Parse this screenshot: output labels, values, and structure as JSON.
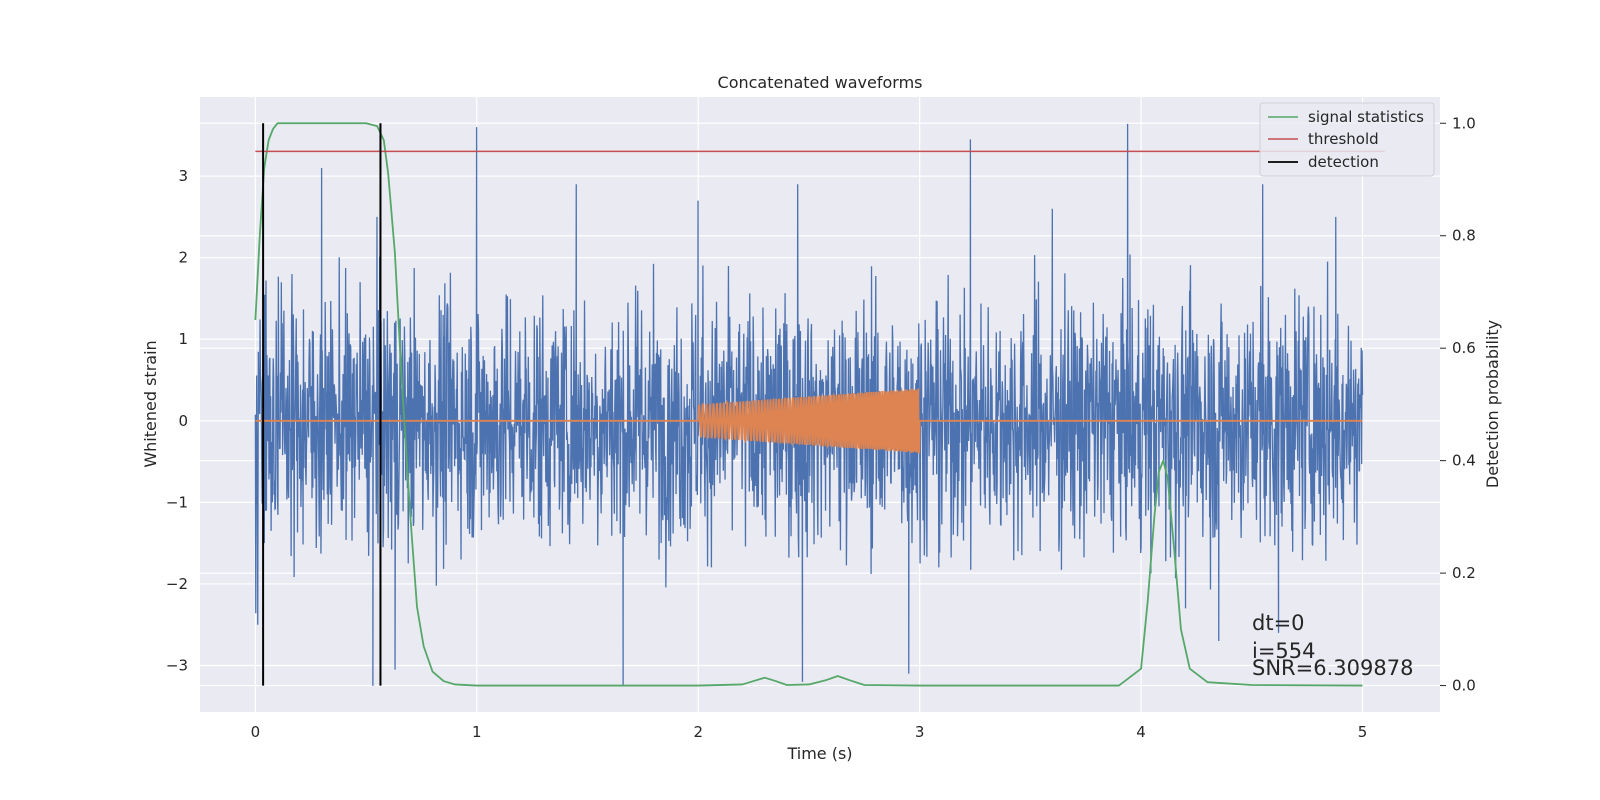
{
  "chart_data": {
    "type": "line",
    "title": "Concatenated waveforms",
    "xlabel": "Time (s)",
    "ylabel": "Whitened strain",
    "ylabel_right": "Detection probability",
    "xlim": [
      -0.25,
      5.35
    ],
    "ylim": [
      -3.57,
      3.97
    ],
    "ylim_right": [
      -0.047,
      1.0467
    ],
    "xticks": [
      0,
      1,
      2,
      3,
      4,
      5
    ],
    "yticks": [
      -3,
      -2,
      -1,
      0,
      1,
      2,
      3
    ],
    "yticks_right": [
      0.0,
      0.2,
      0.4,
      0.6,
      0.8,
      1.0
    ],
    "grid": true,
    "legend_position": "top-right",
    "colors": {
      "strain": "#4c72b0",
      "template": "#dd8452",
      "signal_statistics": "#55a868",
      "threshold": "#c44e52",
      "detection": "#000000",
      "background": "#eaeaf2",
      "grid": "#ffffff"
    },
    "series": [
      {
        "key": "strain",
        "x_range": [
          0,
          5
        ],
        "envelope_noise_amplitude": 3.0,
        "peaks": [
          [
            0.3,
            3.1
          ],
          [
            0.55,
            2.5
          ],
          [
            1.0,
            3.6
          ],
          [
            1.45,
            2.9
          ],
          [
            2.0,
            2.7
          ],
          [
            2.45,
            2.9
          ],
          [
            3.23,
            3.45
          ],
          [
            3.6,
            2.6
          ],
          [
            3.94,
            3.64
          ],
          [
            4.55,
            2.9
          ],
          [
            4.88,
            2.5
          ]
        ],
        "troughs": [
          [
            0.01,
            -2.5
          ],
          [
            0.53,
            -3.25
          ],
          [
            0.63,
            -3.05
          ],
          [
            1.66,
            -3.25
          ],
          [
            2.95,
            -3.1
          ],
          [
            2.47,
            -3.2
          ],
          [
            4.35,
            -2.7
          ],
          [
            4.62,
            -2.6
          ],
          [
            4.2,
            -2.3
          ]
        ]
      },
      {
        "key": "template",
        "x_range": [
          0,
          5
        ],
        "chirp_start": 2.0,
        "chirp_end": 3.0,
        "amplitude_start": 0.2,
        "amplitude_end": 0.4
      },
      {
        "name": "signal statistics",
        "key": "signal_statistics",
        "x": [
          0.0,
          0.02,
          0.04,
          0.06,
          0.08,
          0.1,
          0.15,
          0.2,
          0.3,
          0.4,
          0.5,
          0.55,
          0.58,
          0.6,
          0.63,
          0.66,
          0.7,
          0.73,
          0.76,
          0.8,
          0.85,
          0.9,
          1.0,
          1.5,
          2.0,
          2.2,
          2.25,
          2.3,
          2.35,
          2.4,
          2.5,
          2.58,
          2.63,
          2.68,
          2.75,
          3.0,
          3.5,
          3.9,
          4.0,
          4.03,
          4.06,
          4.08,
          4.1,
          4.12,
          4.15,
          4.18,
          4.22,
          4.3,
          4.5,
          5.0
        ],
        "y": [
          0.65,
          0.8,
          0.92,
          0.97,
          0.99,
          1.0,
          1.0,
          1.0,
          1.0,
          1.0,
          1.0,
          0.995,
          0.97,
          0.91,
          0.77,
          0.55,
          0.3,
          0.14,
          0.07,
          0.025,
          0.008,
          0.002,
          0.0,
          0.0,
          0.0,
          0.002,
          0.008,
          0.014,
          0.008,
          0.001,
          0.002,
          0.01,
          0.017,
          0.01,
          0.001,
          0.0,
          0.0,
          0.0,
          0.03,
          0.15,
          0.3,
          0.38,
          0.4,
          0.37,
          0.24,
          0.1,
          0.03,
          0.006,
          0.001,
          0.0
        ]
      },
      {
        "name": "threshold",
        "key": "threshold",
        "x": [
          0,
          5.1
        ],
        "y": [
          0.95,
          0.95
        ]
      },
      {
        "name": "detection",
        "key": "detection",
        "x": [
          0.035,
          0.565
        ]
      }
    ],
    "annotations": [
      "dt=0",
      "i=554",
      "SNR=6.309878"
    ]
  }
}
